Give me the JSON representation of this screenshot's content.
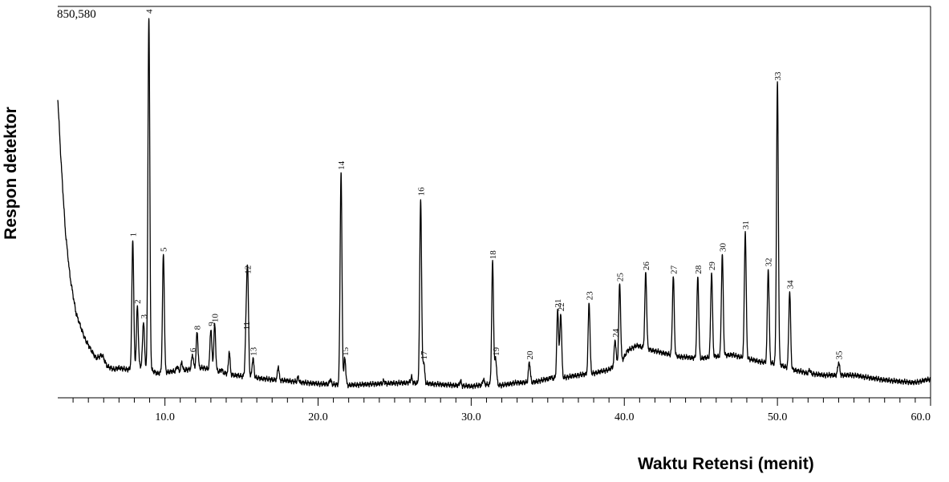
{
  "chart_data": {
    "type": "line",
    "ylabel": "Respon detektor",
    "xlabel": "Waktu Retensi (menit)",
    "y_scale_label": "850,580",
    "xlim": [
      3.0,
      60.0
    ],
    "ylim": [
      0,
      100
    ],
    "x_ticks": [
      10.0,
      20.0,
      30.0,
      40.0,
      50.0,
      60.0
    ],
    "x_tick_labels": [
      "10.0",
      "20.0",
      "30.0",
      "40.0",
      "50.0",
      "60.0"
    ],
    "baseline": [
      [
        3.0,
        78
      ],
      [
        3.2,
        62
      ],
      [
        3.5,
        42
      ],
      [
        3.8,
        30
      ],
      [
        4.2,
        20
      ],
      [
        4.8,
        13
      ],
      [
        5.5,
        8
      ],
      [
        5.9,
        9
      ],
      [
        6.2,
        6
      ],
      [
        6.7,
        5
      ],
      [
        7.0,
        5.5
      ],
      [
        7.5,
        5
      ],
      [
        8.5,
        6
      ],
      [
        9.5,
        4
      ],
      [
        10.5,
        4.5
      ],
      [
        11.5,
        5
      ],
      [
        12.5,
        5.5
      ],
      [
        13.5,
        4.5
      ],
      [
        14.5,
        3.5
      ],
      [
        15.5,
        3
      ],
      [
        16.5,
        2.5
      ],
      [
        18,
        2
      ],
      [
        19,
        1.5
      ],
      [
        20,
        1.2
      ],
      [
        21,
        1
      ],
      [
        22,
        0.8
      ],
      [
        24,
        1.2
      ],
      [
        26,
        1.5
      ],
      [
        28,
        1
      ],
      [
        30,
        0.5
      ],
      [
        31,
        1
      ],
      [
        32,
        0.8
      ],
      [
        33,
        1.5
      ],
      [
        34,
        1.5
      ],
      [
        35,
        2.5
      ],
      [
        36,
        2.8
      ],
      [
        37,
        3.5
      ],
      [
        38,
        4
      ],
      [
        39,
        5
      ],
      [
        39.8,
        7
      ],
      [
        40.2,
        10
      ],
      [
        40.8,
        11.5
      ],
      [
        41.5,
        10.5
      ],
      [
        42.5,
        9.5
      ],
      [
        43.5,
        8.5
      ],
      [
        45,
        8
      ],
      [
        46,
        8.5
      ],
      [
        47,
        9
      ],
      [
        48,
        8
      ],
      [
        49,
        7
      ],
      [
        50,
        6.5
      ],
      [
        51,
        5
      ],
      [
        52,
        4
      ],
      [
        53,
        3.5
      ],
      [
        55,
        3.5
      ],
      [
        56,
        2.8
      ],
      [
        57,
        2.2
      ],
      [
        58,
        1.8
      ],
      [
        59,
        1.5
      ],
      [
        60,
        2.5
      ]
    ],
    "minor_bumps": [
      [
        5.8,
        5
      ],
      [
        6.6,
        4
      ],
      [
        10.3,
        4
      ],
      [
        10.8,
        6
      ],
      [
        11.1,
        7
      ],
      [
        13.7,
        5
      ],
      [
        14.2,
        10
      ],
      [
        17.4,
        6
      ],
      [
        18.7,
        3
      ],
      [
        20.8,
        2.5
      ],
      [
        24.3,
        2
      ],
      [
        26.1,
        3
      ],
      [
        29.3,
        2
      ],
      [
        30.8,
        2.5
      ],
      [
        35.2,
        3
      ],
      [
        38.9,
        3
      ],
      [
        42.6,
        5
      ],
      [
        44.0,
        4
      ],
      [
        44.3,
        4
      ],
      [
        47.2,
        4
      ],
      [
        48.3,
        5
      ],
      [
        51.4,
        4
      ],
      [
        52.1,
        5
      ]
    ],
    "peaks": [
      {
        "label": "1",
        "x": 7.9,
        "y": 40
      },
      {
        "label": "2",
        "x": 8.2,
        "y": 22
      },
      {
        "label": "3",
        "x": 8.6,
        "y": 18
      },
      {
        "label": "4",
        "x": 8.95,
        "y": 100
      },
      {
        "label": "5",
        "x": 9.9,
        "y": 36
      },
      {
        "label": "6",
        "x": 11.8,
        "y": 9
      },
      {
        "label": "7",
        "x": 11.5,
        "y": 4
      },
      {
        "label": "8",
        "x": 12.1,
        "y": 15
      },
      {
        "label": "9",
        "x": 13.0,
        "y": 16
      },
      {
        "label": "10",
        "x": 13.25,
        "y": 17
      },
      {
        "label": "11",
        "x": 15.3,
        "y": 15
      },
      {
        "label": "12",
        "x": 15.4,
        "y": 30
      },
      {
        "label": "13",
        "x": 15.75,
        "y": 8
      },
      {
        "label": "14",
        "x": 21.5,
        "y": 58
      },
      {
        "label": "15",
        "x": 21.75,
        "y": 8
      },
      {
        "label": "16",
        "x": 26.7,
        "y": 51
      },
      {
        "label": "17",
        "x": 26.9,
        "y": 7
      },
      {
        "label": "18",
        "x": 31.4,
        "y": 34
      },
      {
        "label": "19",
        "x": 31.6,
        "y": 8
      },
      {
        "label": "20",
        "x": 33.8,
        "y": 7
      },
      {
        "label": "21",
        "x": 35.65,
        "y": 21
      },
      {
        "label": "22",
        "x": 35.85,
        "y": 20
      },
      {
        "label": "23",
        "x": 37.7,
        "y": 23
      },
      {
        "label": "24",
        "x": 39.4,
        "y": 13
      },
      {
        "label": "25",
        "x": 39.7,
        "y": 28
      },
      {
        "label": "26",
        "x": 41.4,
        "y": 31
      },
      {
        "label": "27",
        "x": 43.2,
        "y": 30
      },
      {
        "label": "28",
        "x": 44.8,
        "y": 30
      },
      {
        "label": "29",
        "x": 45.7,
        "y": 31
      },
      {
        "label": "30",
        "x": 46.4,
        "y": 36
      },
      {
        "label": "31",
        "x": 47.9,
        "y": 42
      },
      {
        "label": "32",
        "x": 49.4,
        "y": 32
      },
      {
        "label": "33",
        "x": 50.0,
        "y": 82
      },
      {
        "label": "34",
        "x": 50.8,
        "y": 26
      },
      {
        "label": "35",
        "x": 54.0,
        "y": 7
      }
    ]
  }
}
